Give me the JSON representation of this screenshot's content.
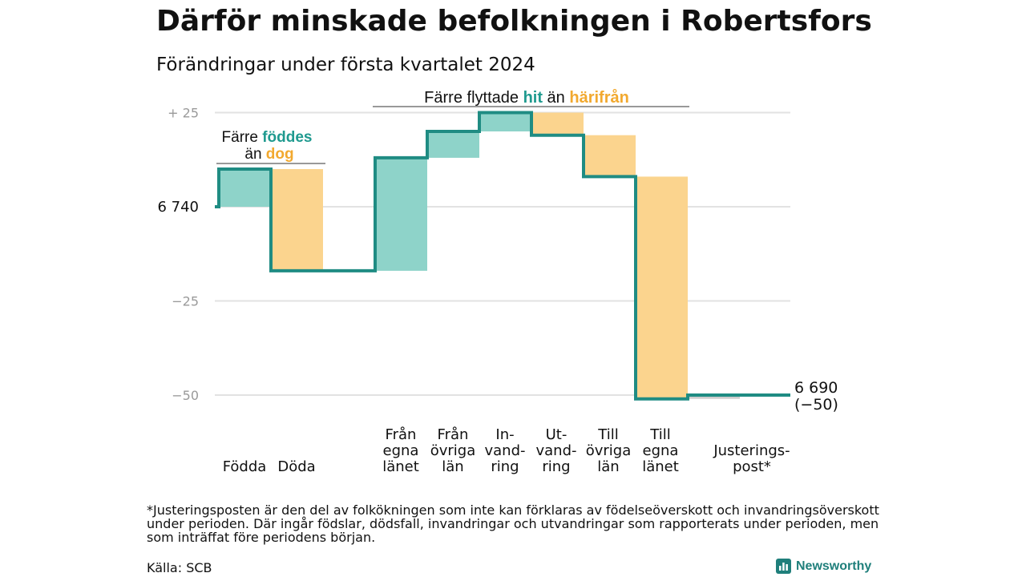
{
  "title": "Därför minskade befolkningen i Robertsfors",
  "subtitle": "Förändringar under första kvartalet 2024",
  "colors": {
    "inflow": "#8ed3c9",
    "outflow": "#fbd48e",
    "line": "#1f8c83",
    "inflow_text": "#1f9a8f",
    "outflow_text": "#f2a92f",
    "grid": "#e2e2e2",
    "adjust": "#cccccc"
  },
  "chart_data": {
    "type": "waterfall",
    "start_population": 6740,
    "end_population": 6690,
    "ylim": [
      -58,
      30
    ],
    "yticks": [
      {
        "value": 25,
        "label": "+  25"
      },
      {
        "value": 0,
        "label": "6  740"
      },
      {
        "value": -25,
        "label": "−25"
      },
      {
        "value": -50,
        "label": "−50"
      }
    ],
    "steps": [
      {
        "label": [
          "Födda"
        ],
        "change": 10,
        "kind": "inflow"
      },
      {
        "label": [
          "Döda"
        ],
        "change": -27,
        "kind": "outflow"
      },
      {
        "label": [
          "Från",
          "egna",
          "länet"
        ],
        "change": 30,
        "kind": "inflow"
      },
      {
        "label": [
          "Från",
          "övriga",
          "län"
        ],
        "change": 7,
        "kind": "inflow"
      },
      {
        "label": [
          "In-",
          "vand-",
          "ring"
        ],
        "change": 5,
        "kind": "inflow"
      },
      {
        "label": [
          "Ut-",
          "vand-",
          "ring"
        ],
        "change": -6,
        "kind": "outflow"
      },
      {
        "label": [
          "Till",
          "övriga",
          "län"
        ],
        "change": -11,
        "kind": "outflow"
      },
      {
        "label": [
          "Till",
          "egna",
          "länet"
        ],
        "change": -59,
        "kind": "outflow"
      },
      {
        "label": [
          "Justerings-",
          "post*"
        ],
        "change": 1,
        "kind": "adjustment"
      }
    ],
    "end_label": [
      "6 690",
      "(−50)"
    ],
    "annotations": {
      "births": {
        "line1": "Färre",
        "line1_highlight": "föddes",
        "line2": "än",
        "line2_highlight": "dog"
      },
      "moves": {
        "text": "Färre flyttade",
        "highlight_in": "hit",
        "middle": "än",
        "highlight_out": "härifrån"
      }
    }
  },
  "footnote": "*Justeringsposten är den del av folkökningen som inte kan förklaras av födelseöverskott och invandringsöverskott under perioden. Där ingår födslar, dödsfall, invandringar och utvandringar som rapporterats under perioden, men som inträffat före periodens början.",
  "source": "Källa: SCB",
  "brand": {
    "name": "Newsworthy",
    "icon": "newsworthy-logo-icon"
  }
}
